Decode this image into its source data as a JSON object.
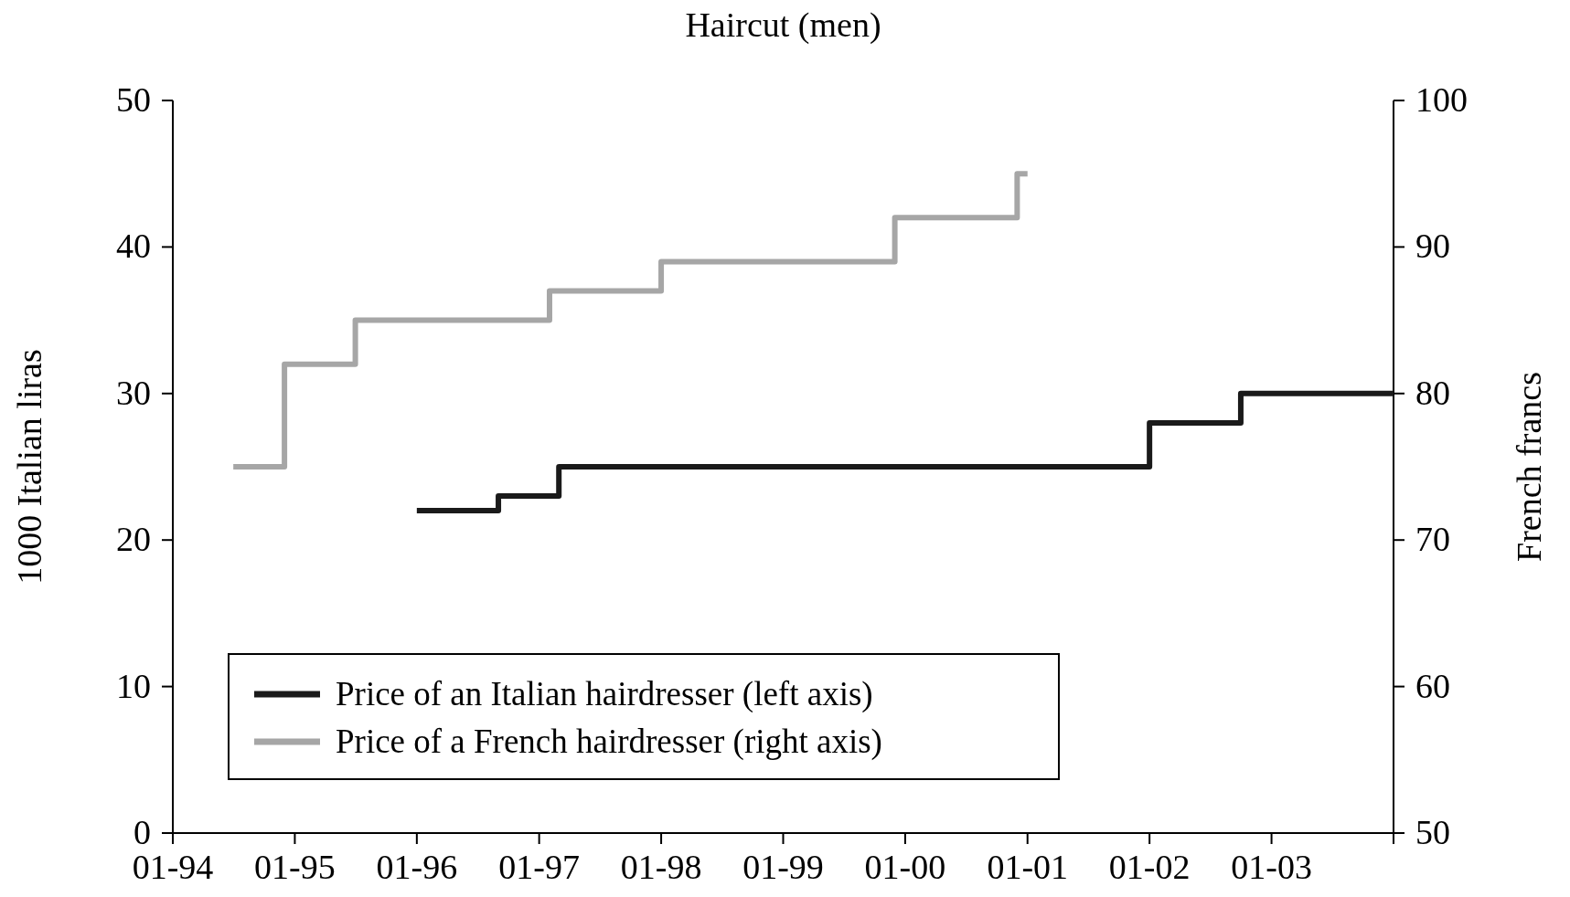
{
  "chart_data": {
    "type": "step",
    "title": "Haircut (men)",
    "ylabel": "1000 Italian liras",
    "y2label": "French francs",
    "xlim": [
      "1994-01",
      "2004-01"
    ],
    "xticks": [
      {
        "value": "1994-01",
        "label": "01-94"
      },
      {
        "value": "1995-01",
        "label": "01-95"
      },
      {
        "value": "1996-01",
        "label": "01-96"
      },
      {
        "value": "1997-01",
        "label": "01-97"
      },
      {
        "value": "1998-01",
        "label": "01-98"
      },
      {
        "value": "1999-01",
        "label": "01-99"
      },
      {
        "value": "2000-01",
        "label": "01-00"
      },
      {
        "value": "2001-01",
        "label": "01-01"
      },
      {
        "value": "2002-01",
        "label": "01-02"
      },
      {
        "value": "2003-01",
        "label": "01-03"
      },
      {
        "value": "2004-01",
        "label": null
      }
    ],
    "ylim": [
      0,
      50
    ],
    "yticks": [
      0,
      10,
      20,
      30,
      40,
      50
    ],
    "y2lim": [
      50,
      100
    ],
    "y2ticks": [
      50,
      60,
      70,
      80,
      90,
      100
    ],
    "legend": "bottom left",
    "series": [
      {
        "name": "Price of an Italian hairdresser (left axis)",
        "color": "#1a1a1a",
        "x": [
          "1996-01",
          "1996-09",
          "1997-03",
          "2002-01",
          "2002-10",
          "2004-01"
        ],
        "values": [
          22,
          23,
          25,
          28,
          30,
          30
        ]
      },
      {
        "name": "Price of a French hairdresser (right axis)",
        "color": "#a6a6a6",
        "axis": "y2",
        "x": [
          "1994-07",
          "1994-12",
          "1995-07",
          "1997-02",
          "1998-01",
          "1999-12",
          "2000-12",
          "2001-01"
        ],
        "values": [
          75,
          82,
          85,
          87,
          89,
          92,
          95,
          95
        ]
      }
    ]
  }
}
